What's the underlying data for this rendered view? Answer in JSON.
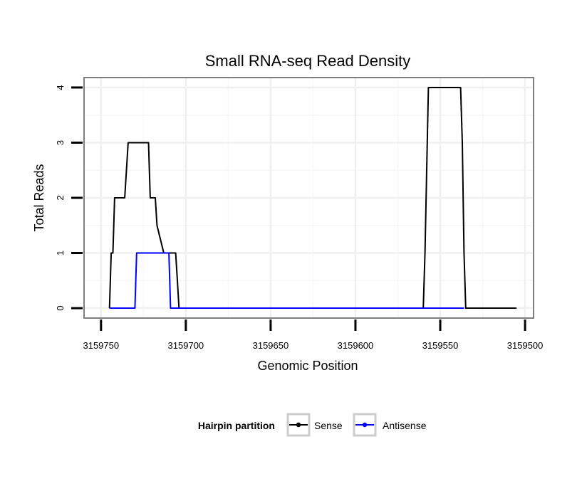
{
  "chart_data": {
    "type": "line",
    "title": "Small RNA-seq Read Density",
    "xlabel": "Genomic Position",
    "ylabel": "Total Reads",
    "xlim": [
      3159760,
      3159495
    ],
    "ylim": [
      -0.18,
      4.18
    ],
    "x_reversed": true,
    "x_ticks": [
      3159750,
      3159700,
      3159650,
      3159600,
      3159550,
      3159500
    ],
    "x_tick_labels": [
      "3159750",
      "3159700",
      "3159650",
      "3159600",
      "3159550",
      "3159500"
    ],
    "y_ticks": [
      0,
      1,
      2,
      3,
      4
    ],
    "y_tick_labels": [
      "0",
      "1",
      "2",
      "3",
      "4"
    ],
    "grid": true,
    "legend": {
      "title": "Hairpin partition",
      "position": "bottom"
    },
    "series": [
      {
        "name": "Sense",
        "color": "#000000",
        "x": [
          3159745,
          3159744,
          3159743,
          3159742,
          3159736,
          3159735,
          3159734,
          3159722,
          3159721,
          3159718,
          3159717,
          3159713,
          3159712,
          3159706,
          3159705,
          3159704,
          3159703,
          3159560,
          3159559,
          3159557,
          3159538,
          3159537,
          3159536,
          3159535,
          3159520,
          3159505
        ],
        "y": [
          0,
          1,
          1,
          2,
          2,
          2.5,
          3,
          3,
          2,
          2,
          1.5,
          1,
          1,
          1,
          0.5,
          0,
          0,
          0,
          1,
          4,
          4,
          3,
          1,
          0,
          0,
          0
        ]
      },
      {
        "name": "Antisense",
        "color": "#0000ff",
        "x": [
          3159745,
          3159730,
          3159729,
          3159710,
          3159709,
          3159708,
          3159700,
          3159650,
          3159600,
          3159560,
          3159540,
          3159536
        ],
        "y": [
          0,
          0,
          1,
          1,
          0,
          0,
          0,
          0,
          0,
          0,
          0,
          0
        ]
      }
    ]
  }
}
